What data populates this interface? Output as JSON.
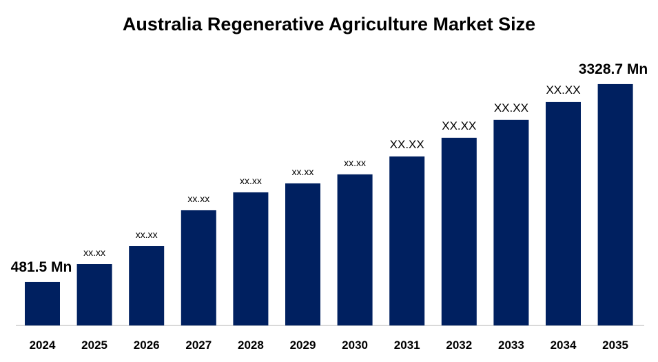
{
  "chart_data": {
    "type": "bar",
    "title": "Australia Regenerative Agriculture Market Size",
    "xlabel": "",
    "ylabel": "",
    "categories": [
      "2024",
      "2025",
      "2026",
      "2027",
      "2028",
      "2029",
      "2030",
      "2031",
      "2032",
      "2033",
      "2034",
      "2035"
    ],
    "values": [
      481.5,
      739,
      997,
      1513,
      1771,
      1900,
      2030,
      2288,
      2556,
      2814,
      3071,
      3328.7
    ],
    "data_labels": [
      "481.5 Mn",
      "xx.xx",
      "xx.xx",
      "xx.xx",
      "xx.xx",
      "xx.xx",
      "xx.xx",
      "XX.XX",
      "XX.XX",
      "XX.XX",
      "XX.XX",
      "3328.7 Mn"
    ],
    "grid": false,
    "legend": "none",
    "bar_color": "#002060",
    "axis_color": "#d9d9d9"
  }
}
